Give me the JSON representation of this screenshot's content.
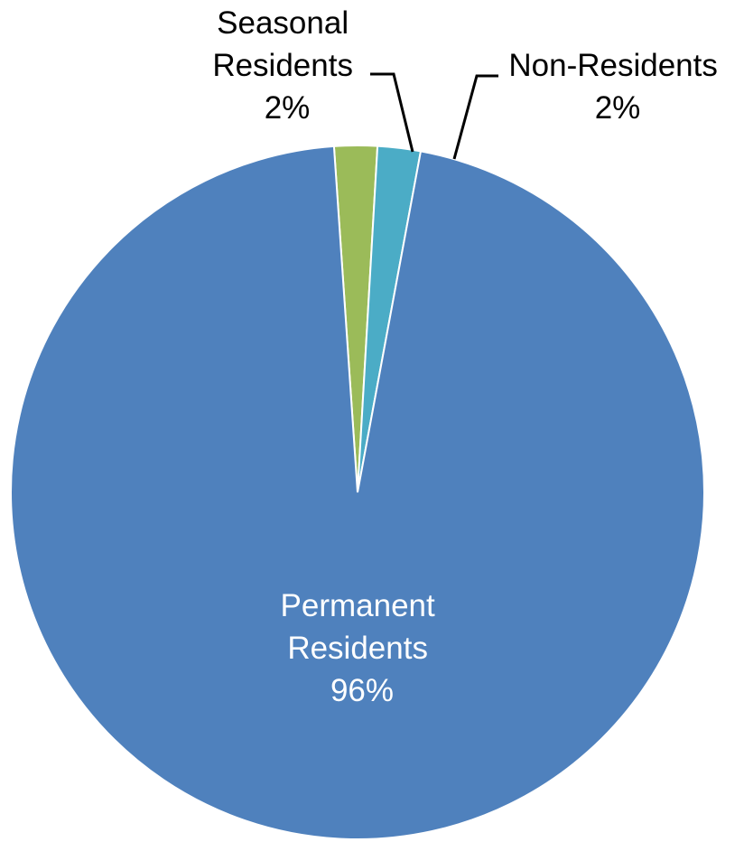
{
  "chart_data": {
    "type": "pie",
    "title": "",
    "legend": "none",
    "slices": [
      {
        "name": "Permanent Residents",
        "label_lines": [
          "Permanent",
          "Residents"
        ],
        "value": 96,
        "value_label": "96%",
        "color": "#4f81bd"
      },
      {
        "name": "Seasonal Residents",
        "label_lines": [
          "Seasonal",
          "Residents"
        ],
        "value": 2,
        "value_label": "2%",
        "color": "#9bbb59"
      },
      {
        "name": "Non-Residents",
        "label_lines": [
          "Non-Residents"
        ],
        "value": 2,
        "value_label": "2%",
        "color": "#4bacc6"
      }
    ]
  }
}
